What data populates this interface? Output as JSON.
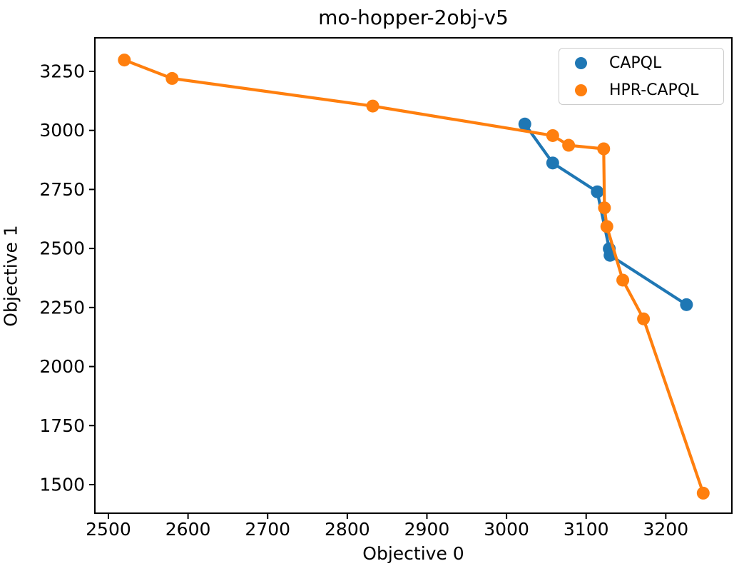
{
  "figure": {
    "title": "mo-hopper-2obj-v5",
    "background": "#ffffff",
    "text_color": "#000000"
  },
  "chart_data": {
    "type": "line",
    "title": "mo-hopper-2obj-v5",
    "xlabel": "Objective 0",
    "ylabel": "Objective 1",
    "xlim": [
      2483,
      3283
    ],
    "ylim": [
      1379,
      3392
    ],
    "x_ticks": [
      2500,
      2600,
      2700,
      2800,
      2900,
      3000,
      3100,
      3200
    ],
    "y_ticks": [
      1500,
      1750,
      2000,
      2250,
      2500,
      2750,
      3000,
      3250
    ],
    "grid": false,
    "legend_position": "upper right",
    "marker_style": "circle",
    "series": [
      {
        "name": "CAPQL",
        "color": "#1f77b4",
        "points": [
          [
            3023,
            3027
          ],
          [
            3058,
            2862
          ],
          [
            3114,
            2740
          ],
          [
            3129,
            2499
          ],
          [
            3130,
            2471
          ],
          [
            3226,
            2262
          ]
        ]
      },
      {
        "name": "HPR-CAPQL",
        "color": "#ff7f0e",
        "points": [
          [
            2520,
            3298
          ],
          [
            2580,
            3220
          ],
          [
            2832,
            3103
          ],
          [
            3058,
            2978
          ],
          [
            3078,
            2937
          ],
          [
            3122,
            2922
          ],
          [
            3123,
            2672
          ],
          [
            3126,
            2593
          ],
          [
            3146,
            2366
          ],
          [
            3172,
            2202
          ],
          [
            3247,
            1464
          ]
        ]
      }
    ]
  }
}
